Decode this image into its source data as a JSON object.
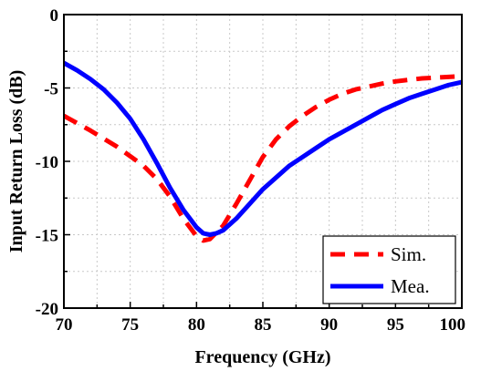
{
  "chart_data": {
    "type": "line",
    "title": "",
    "xlabel": "Frequency (GHz)",
    "ylabel": "Input Return Loss (dB)",
    "xlim": [
      70,
      100
    ],
    "ylim": [
      -20,
      0
    ],
    "xticks": [
      70,
      75,
      80,
      85,
      90,
      95,
      100
    ],
    "yticks": [
      0,
      -5,
      -10,
      -15,
      -20
    ],
    "xtick_labels": [
      "70",
      "75",
      "80",
      "85",
      "90",
      "95",
      "100"
    ],
    "ytick_labels": [
      "0",
      "-5",
      "-10",
      "-15",
      "-20"
    ],
    "grid": true,
    "legend_position": "bottom-right",
    "series": [
      {
        "name": "Sim.",
        "color": "#ff0000",
        "style": "dashed",
        "x": [
          70,
          72,
          74,
          76,
          77,
          78,
          79,
          80,
          80.5,
          81,
          82,
          83,
          84,
          85,
          86,
          87,
          88,
          89,
          90,
          91,
          92,
          93,
          94,
          95,
          96,
          97,
          98,
          99,
          100
        ],
        "y": [
          -6.9,
          -7.9,
          -9.0,
          -10.3,
          -11.2,
          -12.4,
          -13.9,
          -15.1,
          -15.4,
          -15.3,
          -14.4,
          -12.9,
          -11.3,
          -9.7,
          -8.5,
          -7.6,
          -6.9,
          -6.3,
          -5.8,
          -5.4,
          -5.1,
          -4.9,
          -4.7,
          -4.55,
          -4.45,
          -4.35,
          -4.3,
          -4.25,
          -4.2
        ]
      },
      {
        "name": "Mea.",
        "color": "#0000ff",
        "style": "solid",
        "x": [
          70,
          71,
          72,
          73,
          74,
          75,
          76,
          77,
          78,
          79,
          80,
          80.5,
          81,
          81.5,
          82,
          83,
          84,
          85,
          86,
          87,
          88,
          89,
          90,
          91,
          92,
          93,
          94,
          95,
          96,
          97,
          98,
          99,
          100
        ],
        "y": [
          -3.3,
          -3.8,
          -4.4,
          -5.1,
          -6.0,
          -7.1,
          -8.5,
          -10.1,
          -11.8,
          -13.3,
          -14.5,
          -14.9,
          -15.0,
          -14.9,
          -14.7,
          -13.9,
          -12.9,
          -11.9,
          -11.1,
          -10.3,
          -9.7,
          -9.1,
          -8.5,
          -8.0,
          -7.5,
          -7.0,
          -6.5,
          -6.1,
          -5.7,
          -5.4,
          -5.1,
          -4.8,
          -4.6
        ]
      }
    ]
  }
}
